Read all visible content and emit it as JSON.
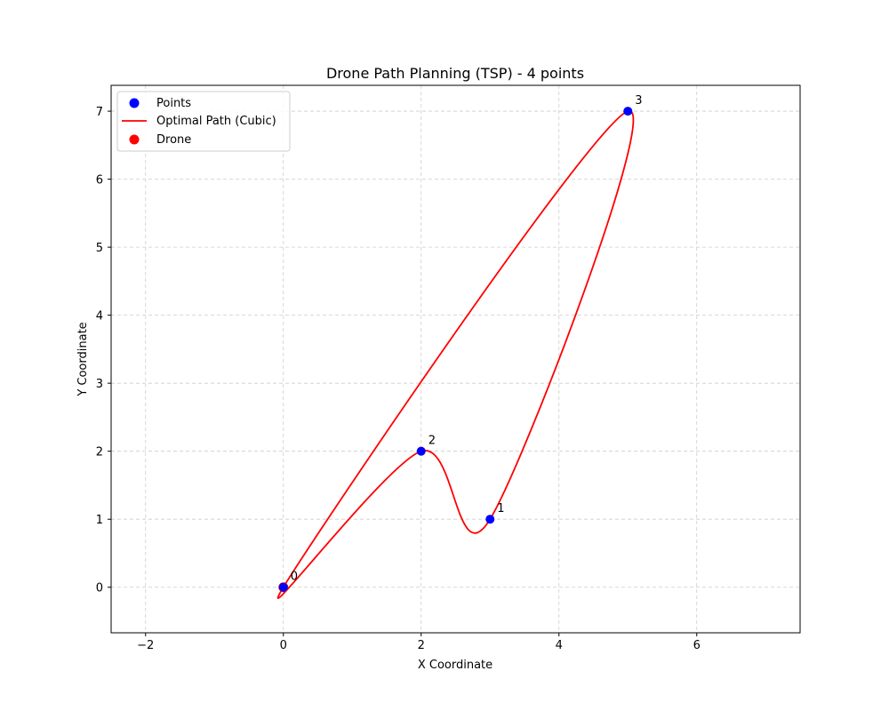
{
  "chart_data": {
    "type": "scatter",
    "title": "Drone Path Planning (TSP) - 4 points",
    "xlabel": "X Coordinate",
    "ylabel": "Y Coordinate",
    "xlim": [
      -2.5,
      7.5
    ],
    "ylim": [
      -0.67,
      7.38
    ],
    "xticks": [
      -2,
      0,
      2,
      4,
      6
    ],
    "yticks": [
      0,
      1,
      2,
      3,
      4,
      5,
      6,
      7
    ],
    "grid": true,
    "legend_position": "top-left",
    "legend": [
      "Points",
      "Optimal Path (Cubic)",
      "Drone"
    ],
    "colors": {
      "points": "#0000ff",
      "path": "#ff0000",
      "drone": "#ff0000",
      "grid": "#cccccc"
    },
    "points": [
      {
        "label": "0",
        "x": 0,
        "y": 0
      },
      {
        "label": "1",
        "x": 3,
        "y": 1
      },
      {
        "label": "2",
        "x": 2,
        "y": 2
      },
      {
        "label": "3",
        "x": 5,
        "y": 7
      }
    ],
    "path_order": [
      0,
      2,
      1,
      3,
      0
    ],
    "drone": {
      "x": 0,
      "y": 0
    }
  }
}
